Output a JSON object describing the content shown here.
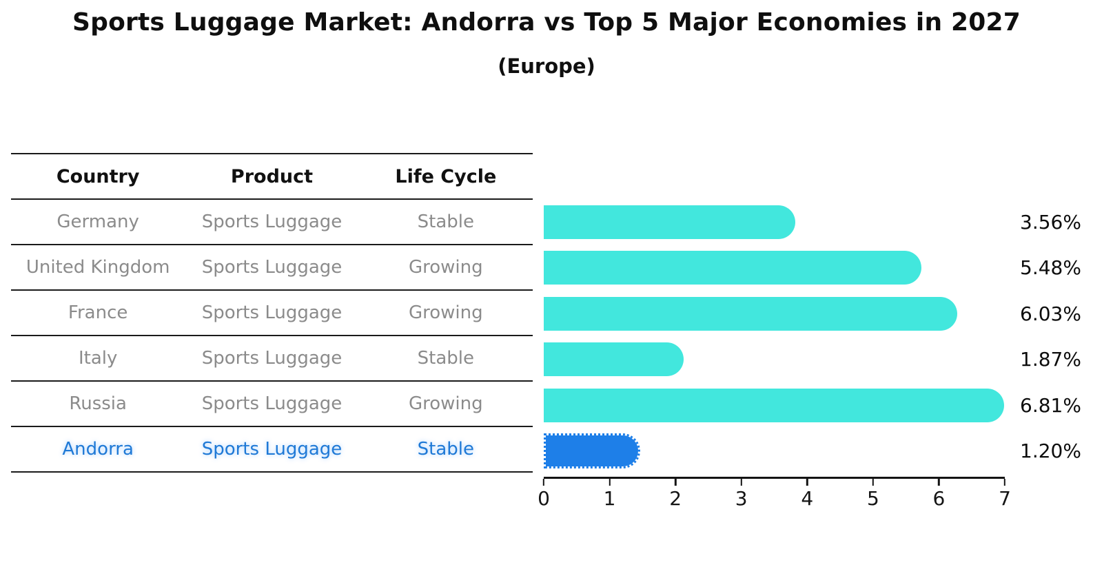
{
  "title": "Sports Luggage Market: Andorra vs Top 5 Major Economies in 2027",
  "subtitle": "(Europe)",
  "colors": {
    "bar": "#42e7dd",
    "highlight_bar": "#1e7fe8",
    "highlight_text": "#1f79d6",
    "row_text": "#8b8b8b",
    "line": "#1a1a1a"
  },
  "table": {
    "headers": [
      "Country",
      "Product",
      "Life Cycle"
    ]
  },
  "rows": [
    {
      "country": "Germany",
      "product": "Sports Luggage",
      "life_cycle": "Stable",
      "value": 3.56,
      "value_label": "3.56%",
      "highlight": false
    },
    {
      "country": "United Kingdom",
      "product": "Sports Luggage",
      "life_cycle": "Growing",
      "value": 5.48,
      "value_label": "5.48%",
      "highlight": false
    },
    {
      "country": "France",
      "product": "Sports Luggage",
      "life_cycle": "Growing",
      "value": 6.03,
      "value_label": "6.03%",
      "highlight": false
    },
    {
      "country": "Italy",
      "product": "Sports Luggage",
      "life_cycle": "Stable",
      "value": 1.87,
      "value_label": "1.87%",
      "highlight": false
    },
    {
      "country": "Russia",
      "product": "Sports Luggage",
      "life_cycle": "Growing",
      "value": 6.81,
      "value_label": "6.81%",
      "highlight": false
    },
    {
      "country": "Andorra",
      "product": "Sports Luggage",
      "life_cycle": "Stable",
      "value": 1.2,
      "value_label": "1.20%",
      "highlight": true
    }
  ],
  "chart_data": {
    "type": "bar",
    "orientation": "horizontal",
    "title": "Sports Luggage Market: Andorra vs Top 5 Major Economies in 2027",
    "subtitle": "(Europe)",
    "categories": [
      "Germany",
      "United Kingdom",
      "France",
      "Italy",
      "Russia",
      "Andorra"
    ],
    "values": [
      3.56,
      5.48,
      6.03,
      1.87,
      6.81,
      1.2
    ],
    "value_labels": [
      "3.56%",
      "5.48%",
      "6.03%",
      "1.87%",
      "6.81%",
      "1.20%"
    ],
    "highlight_category": "Andorra",
    "highlight_index": 5,
    "xlim": [
      0,
      7
    ],
    "x_ticks": [
      "0",
      "1",
      "2",
      "3",
      "4",
      "5",
      "6",
      "7"
    ],
    "grid": false,
    "legend": false,
    "bar_color": "#42e7dd",
    "highlight_color": "#1e7fe8"
  }
}
